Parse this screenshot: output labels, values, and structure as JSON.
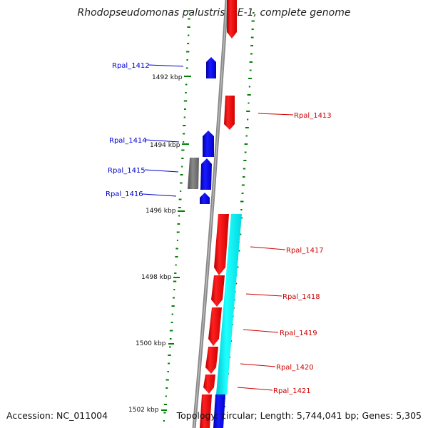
{
  "title": "Rhodopseudomonas palustris TIE-1, complete genome",
  "footer": {
    "accession": "Accession: NC_011004",
    "summary": "Topology: circular; Length: 5,744,041 bp; Genes: 5,305"
  },
  "colors": {
    "forward_cds": "#0000ff",
    "reverse_cds": "#ff0000",
    "other_feature": "#707070",
    "rna_feature": "#00ffff",
    "backbone": "#808080",
    "gc_ticks": "#008000"
  },
  "scale_labels": [
    "1492 kbp",
    "1494 kbp",
    "1496 kbp",
    "1498 kbp",
    "1500 kbp",
    "1502 kbp"
  ],
  "genes": [
    {
      "name": "Rpal_1412",
      "strand": "forward"
    },
    {
      "name": "Rpal_1413",
      "strand": "reverse"
    },
    {
      "name": "Rpal_1414",
      "strand": "forward"
    },
    {
      "name": "Rpal_1415",
      "strand": "forward"
    },
    {
      "name": "Rpal_1416",
      "strand": "forward"
    },
    {
      "name": "Rpal_1417",
      "strand": "reverse"
    },
    {
      "name": "Rpal_1418",
      "strand": "reverse"
    },
    {
      "name": "Rpal_1419",
      "strand": "reverse"
    },
    {
      "name": "Rpal_1420",
      "strand": "reverse"
    },
    {
      "name": "Rpal_1421",
      "strand": "reverse"
    }
  ]
}
